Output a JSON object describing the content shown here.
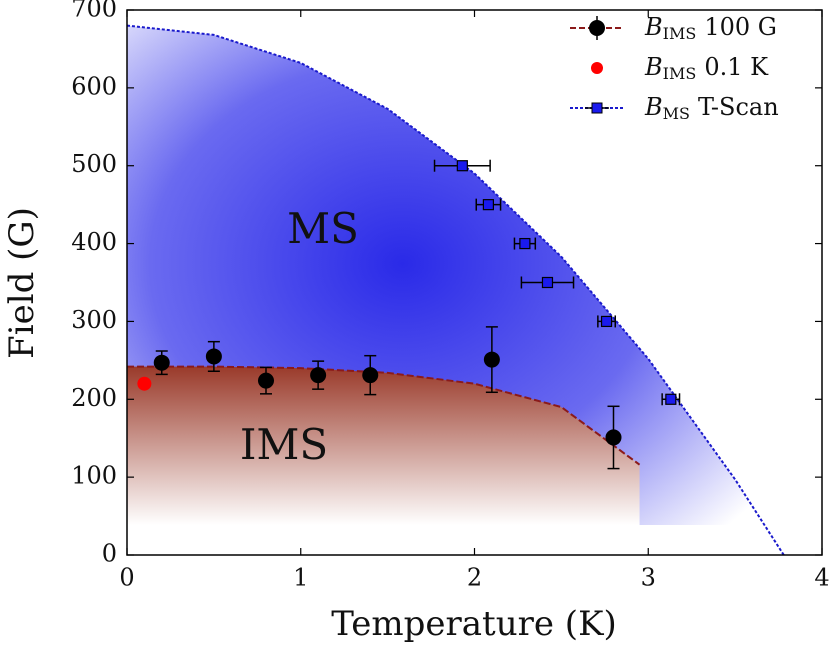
{
  "chart_data": {
    "type": "scatter",
    "x_label": "Temperature (K)",
    "y_label": "Field (G)",
    "annotations": [
      "MS",
      "IMS"
    ],
    "xlim": [
      0,
      4
    ],
    "ylim": [
      0,
      700
    ],
    "xticks": [
      0,
      1,
      2,
      3,
      4
    ],
    "yticks": [
      0,
      100,
      200,
      300,
      400,
      500,
      600,
      700
    ],
    "legend": "upper right",
    "series": [
      {
        "name": "B",
        "name_sub": "IMS",
        "name_rest": "100 G",
        "color": "#000000",
        "line_color": "#8b1a1a",
        "x": [
          0.2,
          0.5,
          0.8,
          1.1,
          1.4,
          2.1,
          2.8
        ],
        "values": [
          247,
          255,
          224,
          231,
          231,
          251,
          151
        ],
        "yerr": [
          15,
          19,
          17,
          18,
          25,
          42,
          40
        ]
      },
      {
        "name": "B",
        "name_sub": "IMS",
        "name_rest": "0.1 K",
        "color": "#ff0000",
        "x": [
          0.1
        ],
        "values": [
          220
        ]
      },
      {
        "name": "B",
        "name_sub": "MS",
        "name_rest": "T-Scan",
        "color": "#1a1aee",
        "line_color": "#1a1acc",
        "x": [
          1.93,
          2.08,
          2.29,
          2.42,
          2.76,
          3.13
        ],
        "values": [
          500,
          450,
          400,
          350,
          300,
          200
        ],
        "xerr": [
          0.16,
          0.07,
          0.06,
          0.15,
          0.05,
          0.05
        ]
      }
    ],
    "fits": [
      {
        "color": "#8b1a1a",
        "x": [
          0,
          0.5,
          1,
          1.5,
          2,
          2.5,
          2.95
        ],
        "values": [
          242,
          242,
          240,
          234,
          220,
          190,
          116
        ]
      },
      {
        "color": "#1a1acc",
        "x": [
          0,
          0.5,
          1,
          1.5,
          2,
          2.5,
          3,
          3.5,
          3.78
        ],
        "values": [
          680,
          668,
          632,
          573,
          490,
          383,
          252,
          97,
          0
        ]
      }
    ]
  }
}
